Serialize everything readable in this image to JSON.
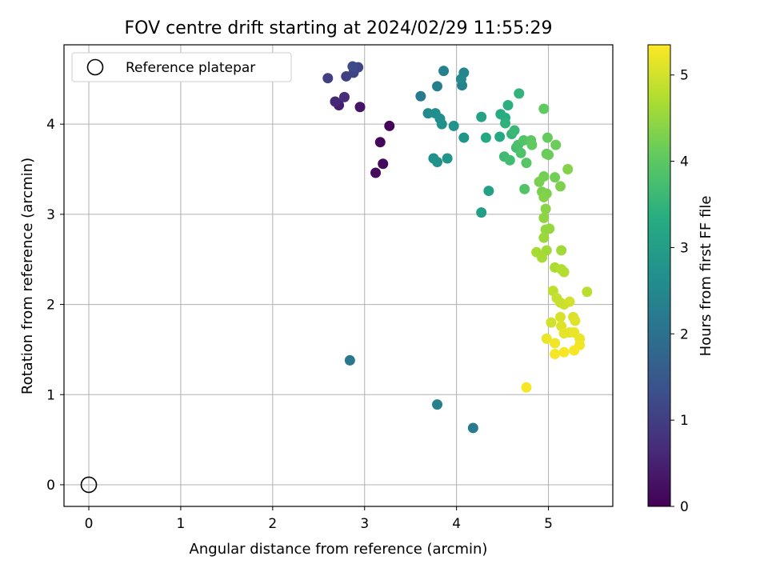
{
  "chart_data": {
    "type": "scatter",
    "title": "FOV centre drift starting at 2024/02/29 11:55:29",
    "xlabel": "Angular distance from reference (arcmin)",
    "ylabel": "Rotation from reference (arcmin)",
    "xlim": [
      -0.27,
      5.7
    ],
    "ylim": [
      -0.24,
      4.88
    ],
    "xticks": [
      "0",
      "1",
      "2",
      "3",
      "4",
      "5"
    ],
    "yticks": [
      "0",
      "1",
      "2",
      "3",
      "4"
    ],
    "grid": true,
    "legend": {
      "label": "Reference platepar",
      "position": "top-left",
      "marker": "open-circle"
    },
    "reference_point": {
      "x": 0,
      "y": 0
    },
    "colorbar": {
      "label": "Hours from first FF file",
      "colormap": "viridis",
      "range": [
        0,
        5.35
      ],
      "ticks": [
        "0",
        "1",
        "2",
        "3",
        "4",
        "5"
      ]
    },
    "points": [
      {
        "x": 3.27,
        "y": 3.98,
        "c": 0.05
      },
      {
        "x": 3.17,
        "y": 3.8,
        "c": 0.1
      },
      {
        "x": 3.2,
        "y": 3.56,
        "c": 0.12
      },
      {
        "x": 3.12,
        "y": 3.46,
        "c": 0.15
      },
      {
        "x": 2.95,
        "y": 4.19,
        "c": 0.3
      },
      {
        "x": 2.72,
        "y": 4.21,
        "c": 0.45
      },
      {
        "x": 2.68,
        "y": 4.25,
        "c": 0.6
      },
      {
        "x": 2.78,
        "y": 4.3,
        "c": 0.7
      },
      {
        "x": 2.6,
        "y": 4.51,
        "c": 1.0
      },
      {
        "x": 2.8,
        "y": 4.53,
        "c": 1.05
      },
      {
        "x": 2.88,
        "y": 4.57,
        "c": 1.1
      },
      {
        "x": 2.93,
        "y": 4.63,
        "c": 1.15
      },
      {
        "x": 2.87,
        "y": 4.64,
        "c": 1.25
      },
      {
        "x": 2.84,
        "y": 1.38,
        "c": 2.15
      },
      {
        "x": 3.61,
        "y": 4.31,
        "c": 2.2
      },
      {
        "x": 3.79,
        "y": 4.42,
        "c": 2.3
      },
      {
        "x": 3.86,
        "y": 4.59,
        "c": 2.35
      },
      {
        "x": 4.06,
        "y": 4.43,
        "c": 2.4
      },
      {
        "x": 4.08,
        "y": 4.57,
        "c": 2.45
      },
      {
        "x": 4.05,
        "y": 4.5,
        "c": 2.5
      },
      {
        "x": 3.79,
        "y": 0.89,
        "c": 2.35
      },
      {
        "x": 4.18,
        "y": 0.63,
        "c": 2.2
      },
      {
        "x": 3.69,
        "y": 4.12,
        "c": 2.55
      },
      {
        "x": 3.77,
        "y": 4.12,
        "c": 2.6
      },
      {
        "x": 3.82,
        "y": 4.06,
        "c": 2.65
      },
      {
        "x": 3.84,
        "y": 4.0,
        "c": 2.7
      },
      {
        "x": 3.97,
        "y": 3.98,
        "c": 2.75
      },
      {
        "x": 4.08,
        "y": 3.85,
        "c": 2.8
      },
      {
        "x": 3.75,
        "y": 3.62,
        "c": 2.7
      },
      {
        "x": 3.79,
        "y": 3.58,
        "c": 2.75
      },
      {
        "x": 3.9,
        "y": 3.62,
        "c": 2.8
      },
      {
        "x": 4.27,
        "y": 3.02,
        "c": 3.0
      },
      {
        "x": 4.35,
        "y": 3.26,
        "c": 3.05
      },
      {
        "x": 4.27,
        "y": 4.08,
        "c": 3.1
      },
      {
        "x": 4.32,
        "y": 3.85,
        "c": 3.2
      },
      {
        "x": 4.47,
        "y": 3.86,
        "c": 3.25
      },
      {
        "x": 4.48,
        "y": 4.11,
        "c": 3.3
      },
      {
        "x": 4.53,
        "y": 4.07,
        "c": 3.35
      },
      {
        "x": 4.56,
        "y": 4.21,
        "c": 3.4
      },
      {
        "x": 4.53,
        "y": 4.01,
        "c": 3.45
      },
      {
        "x": 4.68,
        "y": 4.34,
        "c": 3.5
      },
      {
        "x": 4.6,
        "y": 3.89,
        "c": 3.55
      },
      {
        "x": 4.63,
        "y": 3.93,
        "c": 3.6
      },
      {
        "x": 4.52,
        "y": 3.64,
        "c": 3.65
      },
      {
        "x": 4.58,
        "y": 3.6,
        "c": 3.7
      },
      {
        "x": 4.65,
        "y": 3.74,
        "c": 3.75
      },
      {
        "x": 4.67,
        "y": 3.77,
        "c": 3.8
      },
      {
        "x": 4.7,
        "y": 3.68,
        "c": 3.85
      },
      {
        "x": 4.73,
        "y": 3.82,
        "c": 3.9
      },
      {
        "x": 4.76,
        "y": 3.57,
        "c": 3.95
      },
      {
        "x": 4.74,
        "y": 3.28,
        "c": 3.9
      },
      {
        "x": 4.81,
        "y": 3.82,
        "c": 4.0
      },
      {
        "x": 4.82,
        "y": 3.77,
        "c": 4.05
      },
      {
        "x": 4.95,
        "y": 4.17,
        "c": 4.05
      },
      {
        "x": 4.99,
        "y": 3.85,
        "c": 4.1
      },
      {
        "x": 5.08,
        "y": 3.77,
        "c": 4.15
      },
      {
        "x": 4.98,
        "y": 3.67,
        "c": 4.1
      },
      {
        "x": 5.0,
        "y": 3.66,
        "c": 4.15
      },
      {
        "x": 5.07,
        "y": 3.41,
        "c": 4.2
      },
      {
        "x": 4.95,
        "y": 3.42,
        "c": 4.2
      },
      {
        "x": 4.9,
        "y": 3.36,
        "c": 4.25
      },
      {
        "x": 4.93,
        "y": 3.25,
        "c": 4.25
      },
      {
        "x": 4.98,
        "y": 3.23,
        "c": 4.3
      },
      {
        "x": 4.95,
        "y": 3.19,
        "c": 4.35
      },
      {
        "x": 5.13,
        "y": 3.31,
        "c": 4.3
      },
      {
        "x": 5.21,
        "y": 3.5,
        "c": 4.35
      },
      {
        "x": 4.97,
        "y": 3.06,
        "c": 4.4
      },
      {
        "x": 4.95,
        "y": 2.96,
        "c": 4.45
      },
      {
        "x": 4.97,
        "y": 2.83,
        "c": 4.5
      },
      {
        "x": 5.01,
        "y": 2.84,
        "c": 4.5
      },
      {
        "x": 4.95,
        "y": 2.74,
        "c": 4.55
      },
      {
        "x": 4.98,
        "y": 2.6,
        "c": 4.6
      },
      {
        "x": 4.87,
        "y": 2.58,
        "c": 4.65
      },
      {
        "x": 4.93,
        "y": 2.52,
        "c": 4.65
      },
      {
        "x": 5.14,
        "y": 2.6,
        "c": 4.6
      },
      {
        "x": 5.07,
        "y": 2.41,
        "c": 4.7
      },
      {
        "x": 5.14,
        "y": 2.39,
        "c": 4.75
      },
      {
        "x": 5.17,
        "y": 2.36,
        "c": 4.75
      },
      {
        "x": 5.42,
        "y": 2.14,
        "c": 4.8
      },
      {
        "x": 5.05,
        "y": 2.15,
        "c": 4.85
      },
      {
        "x": 5.09,
        "y": 2.07,
        "c": 4.9
      },
      {
        "x": 5.13,
        "y": 2.02,
        "c": 4.9
      },
      {
        "x": 5.17,
        "y": 2.0,
        "c": 4.95
      },
      {
        "x": 5.23,
        "y": 2.03,
        "c": 5.0
      },
      {
        "x": 5.03,
        "y": 1.8,
        "c": 5.0
      },
      {
        "x": 5.13,
        "y": 1.86,
        "c": 5.05
      },
      {
        "x": 5.27,
        "y": 1.86,
        "c": 5.05
      },
      {
        "x": 5.29,
        "y": 1.82,
        "c": 5.1
      },
      {
        "x": 5.14,
        "y": 1.76,
        "c": 5.1
      },
      {
        "x": 5.17,
        "y": 1.68,
        "c": 5.15
      },
      {
        "x": 5.23,
        "y": 1.69,
        "c": 5.15
      },
      {
        "x": 5.28,
        "y": 1.69,
        "c": 5.2
      },
      {
        "x": 5.34,
        "y": 1.62,
        "c": 5.2
      },
      {
        "x": 4.98,
        "y": 1.62,
        "c": 5.2
      },
      {
        "x": 5.07,
        "y": 1.57,
        "c": 5.25
      },
      {
        "x": 5.34,
        "y": 1.55,
        "c": 5.25
      },
      {
        "x": 5.28,
        "y": 1.49,
        "c": 5.3
      },
      {
        "x": 5.17,
        "y": 1.47,
        "c": 5.3
      },
      {
        "x": 5.07,
        "y": 1.45,
        "c": 5.3
      },
      {
        "x": 4.76,
        "y": 1.08,
        "c": 5.3
      }
    ]
  }
}
